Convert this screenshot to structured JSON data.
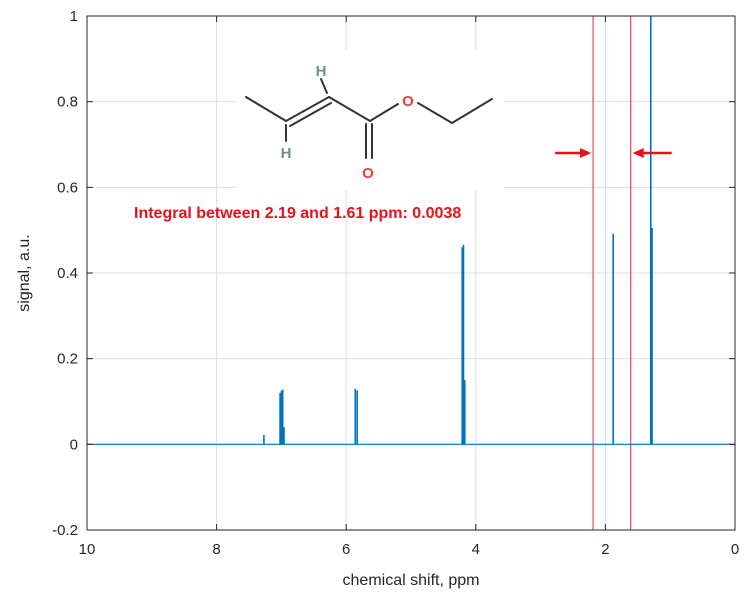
{
  "chart_data": {
    "type": "line",
    "title": "",
    "xlabel": "chemical shift, ppm",
    "ylabel": "signal, a.u.",
    "xlim": [
      10,
      0
    ],
    "ylim": [
      -0.2,
      1
    ],
    "x_reversed": true,
    "grid": true,
    "x_ticks": [
      "10",
      "8",
      "6",
      "4",
      "2",
      "0"
    ],
    "y_ticks": [
      "-0.2",
      "0",
      "0.2",
      "0.4",
      "0.6",
      "0.8",
      "1"
    ],
    "series": [
      {
        "color": "#0072BD",
        "peaks": [
          {
            "x": 7.27,
            "y": 0.022
          },
          {
            "x": 7.02,
            "y": 0.12
          },
          {
            "x": 7.0,
            "y": 0.125
          },
          {
            "x": 6.98,
            "y": 0.128
          },
          {
            "x": 6.96,
            "y": 0.04
          },
          {
            "x": 5.86,
            "y": 0.13
          },
          {
            "x": 5.83,
            "y": 0.126
          },
          {
            "x": 4.21,
            "y": 0.46
          },
          {
            "x": 4.19,
            "y": 0.466
          },
          {
            "x": 4.17,
            "y": 0.15
          },
          {
            "x": 1.88,
            "y": 0.492
          },
          {
            "x": 1.3,
            "y": 1.05
          },
          {
            "x": 1.28,
            "y": 0.505
          }
        ]
      }
    ],
    "integration_bounds": [
      2.19,
      1.61
    ],
    "bound_color": "#e05050",
    "annotation": {
      "text": "Integral between 2.19 and 1.61 ppm: 0.0038",
      "color": "#e8101a"
    },
    "molecule": {
      "atom_labels": [
        "H",
        "H",
        "O",
        "O"
      ],
      "hydrogen_color": "#6f8f8b",
      "oxygen_color": "#f03c3c",
      "bond_color": "#333333"
    }
  }
}
